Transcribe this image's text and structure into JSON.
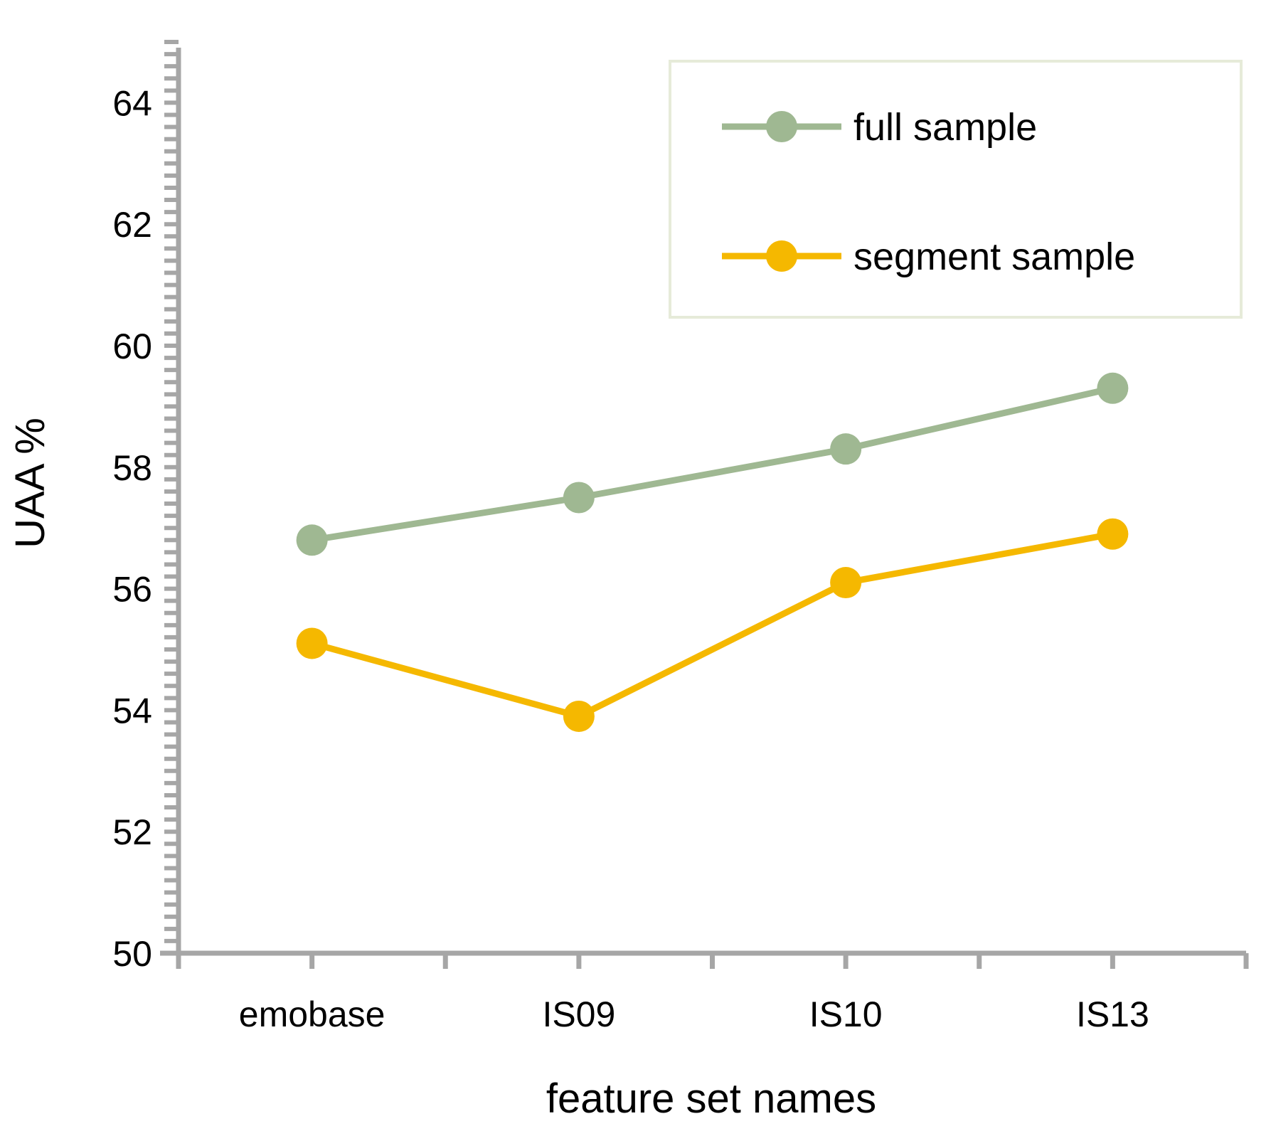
{
  "chart_data": {
    "type": "line",
    "title": "",
    "xlabel": "feature set names",
    "ylabel": "UAA %",
    "categories": [
      "emobase",
      "IS09",
      "IS10",
      "IS13"
    ],
    "ylim": [
      50,
      65
    ],
    "yticks": [
      50,
      52,
      54,
      56,
      58,
      60,
      62,
      64
    ],
    "grid": false,
    "legend_position": "top-right",
    "series": [
      {
        "name": "full sample",
        "color": "#9fb892",
        "values": [
          56.8,
          57.5,
          58.3,
          59.3
        ]
      },
      {
        "name": "segment sample",
        "color": "#f5b800",
        "values": [
          55.1,
          53.9,
          56.1,
          56.9
        ]
      }
    ],
    "axis_color": "#a6a6a6",
    "legend_border_color": "#e6ebd9"
  }
}
